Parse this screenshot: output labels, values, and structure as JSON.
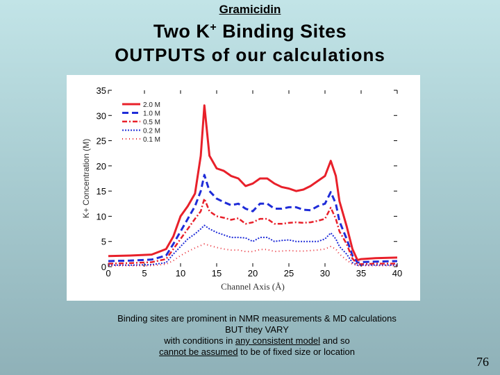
{
  "slide": {
    "kicker": "Gramicidin",
    "title_pre": "Two K",
    "title_sup": "+",
    "title_post": " Binding Sites",
    "subtitle": "OUTPUTS of our calculations",
    "caption": {
      "line1": "Binding sites are prominent in NMR measurements & MD calculations",
      "line2": "BUT they VARY",
      "line3_a": "with conditions in ",
      "line3_u": "any consistent model",
      "line3_b": " and so",
      "line4_u": "cannot be assumed",
      "line4_b": " to be of fixed size or location"
    },
    "slide_number": "76"
  },
  "chart_data": {
    "type": "line",
    "xlabel": "Channel Axis (Å)",
    "ylabel": "K+ Concentration (M)",
    "xlim": [
      0,
      40
    ],
    "ylim": [
      0,
      35
    ],
    "xticks": [
      0,
      5,
      10,
      15,
      20,
      25,
      30,
      35,
      40
    ],
    "yticks": [
      0,
      5,
      10,
      15,
      20,
      25,
      30,
      35
    ],
    "legend_position": "top-left",
    "grid": false,
    "x": [
      0,
      3,
      6,
      8,
      9,
      10,
      11,
      12,
      12.8,
      13.3,
      14,
      15,
      16,
      17,
      18,
      19,
      20,
      21,
      22,
      23,
      24,
      25,
      26,
      27,
      28,
      29,
      30,
      30.8,
      31.5,
      32,
      33,
      33.8,
      34.5,
      35,
      37,
      40
    ],
    "series": [
      {
        "name": "2.0 M",
        "color": "#e8202a",
        "dash": "solid",
        "width": 3,
        "values": [
          2.1,
          2.2,
          2.4,
          3.5,
          6,
          10,
          12,
          14.5,
          22,
          32,
          22,
          19.5,
          19,
          18,
          17.5,
          16,
          16.5,
          17.5,
          17.5,
          16.5,
          15.8,
          15.5,
          15,
          15.3,
          16,
          17,
          18,
          21,
          18,
          13,
          8,
          3.5,
          1.3,
          1.5,
          1.7,
          1.8
        ]
      },
      {
        "name": "1.0 M",
        "color": "#1f2cd8",
        "dash": "9 5",
        "width": 3,
        "values": [
          1.1,
          1.2,
          1.4,
          2.2,
          4.5,
          7,
          9.5,
          12,
          15,
          18.2,
          15,
          13.5,
          12.8,
          12.2,
          12.5,
          11.5,
          11,
          12.5,
          12.5,
          11.5,
          11.5,
          11.8,
          11.8,
          11.3,
          11.2,
          12,
          12.5,
          14.8,
          12.5,
          9,
          5.5,
          2.2,
          0.8,
          0.9,
          1,
          1.1
        ]
      },
      {
        "name": "0.5 M",
        "color": "#e8202a",
        "dash": "7 3 2 3",
        "width": 2.5,
        "values": [
          0.6,
          0.7,
          0.9,
          1.5,
          3.5,
          5.5,
          7.5,
          9.5,
          11,
          13.5,
          11,
          10,
          9.7,
          9.3,
          9.6,
          8.5,
          8.8,
          9.5,
          9.5,
          8.5,
          8.5,
          8.7,
          8.8,
          8.7,
          8.8,
          9.1,
          9.5,
          11.7,
          9.5,
          7,
          4.5,
          1.6,
          0.5,
          0.5,
          0.6,
          0.6
        ]
      },
      {
        "name": "0.2 M",
        "color": "#1f2cd8",
        "dash": "2 2",
        "width": 2,
        "values": [
          0.3,
          0.3,
          0.4,
          0.8,
          2.5,
          4,
          5.5,
          6.5,
          7.5,
          8.2,
          7.5,
          6.8,
          6.3,
          5.8,
          5.8,
          5.7,
          5,
          5.8,
          5.8,
          5,
          5.2,
          5.3,
          5,
          5,
          5,
          5,
          5.5,
          6.7,
          5.5,
          4,
          2.5,
          0.8,
          0.3,
          0.3,
          0.3,
          0.3
        ]
      },
      {
        "name": "0.1 M",
        "color": "#e8202a",
        "dash": "1 4",
        "width": 2,
        "values": [
          0.2,
          0.2,
          0.2,
          0.5,
          1.2,
          2.2,
          3,
          3.7,
          4.2,
          4.5,
          4.2,
          3.8,
          3.5,
          3.3,
          3.3,
          3,
          3,
          3.4,
          3.4,
          3,
          3.1,
          3.2,
          3.1,
          3.1,
          3.2,
          3.3,
          3.5,
          4,
          3.5,
          2.5,
          1.3,
          0.5,
          0.2,
          0.2,
          0.2,
          0.2
        ]
      }
    ]
  }
}
